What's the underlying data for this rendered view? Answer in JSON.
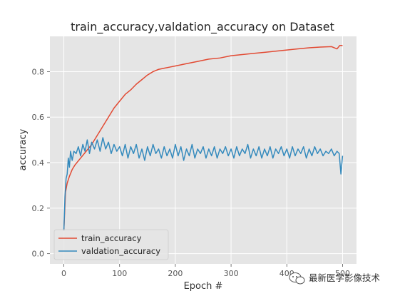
{
  "chart_data": {
    "type": "line",
    "title": "train_accuracy,valdation_accuracy on Dataset",
    "xlabel": "Epoch #",
    "ylabel": "accuracy",
    "xlim": [
      -25,
      525
    ],
    "ylim": [
      -0.045,
      0.955
    ],
    "xticks": [
      0,
      100,
      200,
      300,
      400,
      500
    ],
    "yticks": [
      0.0,
      0.2,
      0.4,
      0.6,
      0.8
    ],
    "ytick_labels": [
      "0.0",
      "0.2",
      "0.4",
      "0.6",
      "0.8"
    ],
    "grid": true,
    "legend_position": "lower-left",
    "series": [
      {
        "name": "train_accuracy",
        "color": "#E24A33",
        "points": [
          [
            0,
            0.1
          ],
          [
            3,
            0.27
          ],
          [
            6,
            0.31
          ],
          [
            10,
            0.34
          ],
          [
            15,
            0.37
          ],
          [
            20,
            0.39
          ],
          [
            30,
            0.42
          ],
          [
            40,
            0.45
          ],
          [
            50,
            0.48
          ],
          [
            60,
            0.52
          ],
          [
            70,
            0.56
          ],
          [
            80,
            0.6
          ],
          [
            90,
            0.64
          ],
          [
            100,
            0.67
          ],
          [
            110,
            0.7
          ],
          [
            120,
            0.72
          ],
          [
            130,
            0.745
          ],
          [
            140,
            0.765
          ],
          [
            150,
            0.785
          ],
          [
            160,
            0.8
          ],
          [
            170,
            0.81
          ],
          [
            180,
            0.815
          ],
          [
            190,
            0.82
          ],
          [
            200,
            0.825
          ],
          [
            220,
            0.835
          ],
          [
            240,
            0.845
          ],
          [
            260,
            0.855
          ],
          [
            280,
            0.86
          ],
          [
            300,
            0.87
          ],
          [
            320,
            0.875
          ],
          [
            340,
            0.88
          ],
          [
            360,
            0.885
          ],
          [
            380,
            0.89
          ],
          [
            400,
            0.895
          ],
          [
            420,
            0.9
          ],
          [
            440,
            0.905
          ],
          [
            460,
            0.908
          ],
          [
            480,
            0.91
          ],
          [
            490,
            0.9
          ],
          [
            495,
            0.915
          ],
          [
            500,
            0.915
          ]
        ]
      },
      {
        "name": "valdation_accuracy",
        "color": "#348ABD",
        "points": [
          [
            0,
            0.1
          ],
          [
            2,
            0.25
          ],
          [
            4,
            0.33
          ],
          [
            6,
            0.35
          ],
          [
            8,
            0.42
          ],
          [
            10,
            0.38
          ],
          [
            12,
            0.45
          ],
          [
            15,
            0.41
          ],
          [
            18,
            0.45
          ],
          [
            22,
            0.44
          ],
          [
            26,
            0.47
          ],
          [
            30,
            0.43
          ],
          [
            34,
            0.48
          ],
          [
            38,
            0.45
          ],
          [
            42,
            0.5
          ],
          [
            46,
            0.44
          ],
          [
            50,
            0.49
          ],
          [
            55,
            0.46
          ],
          [
            60,
            0.5
          ],
          [
            65,
            0.45
          ],
          [
            70,
            0.51
          ],
          [
            75,
            0.46
          ],
          [
            80,
            0.49
          ],
          [
            85,
            0.44
          ],
          [
            90,
            0.48
          ],
          [
            95,
            0.45
          ],
          [
            100,
            0.47
          ],
          [
            105,
            0.43
          ],
          [
            110,
            0.48
          ],
          [
            115,
            0.42
          ],
          [
            120,
            0.47
          ],
          [
            125,
            0.44
          ],
          [
            130,
            0.48
          ],
          [
            135,
            0.42
          ],
          [
            140,
            0.46
          ],
          [
            145,
            0.41
          ],
          [
            150,
            0.47
          ],
          [
            155,
            0.43
          ],
          [
            160,
            0.48
          ],
          [
            165,
            0.44
          ],
          [
            170,
            0.46
          ],
          [
            175,
            0.42
          ],
          [
            180,
            0.47
          ],
          [
            185,
            0.43
          ],
          [
            190,
            0.46
          ],
          [
            195,
            0.42
          ],
          [
            200,
            0.48
          ],
          [
            205,
            0.43
          ],
          [
            210,
            0.47
          ],
          [
            215,
            0.41
          ],
          [
            220,
            0.46
          ],
          [
            225,
            0.43
          ],
          [
            230,
            0.48
          ],
          [
            235,
            0.42
          ],
          [
            240,
            0.46
          ],
          [
            245,
            0.44
          ],
          [
            250,
            0.47
          ],
          [
            255,
            0.42
          ],
          [
            260,
            0.46
          ],
          [
            265,
            0.43
          ],
          [
            270,
            0.47
          ],
          [
            275,
            0.42
          ],
          [
            280,
            0.46
          ],
          [
            285,
            0.44
          ],
          [
            290,
            0.47
          ],
          [
            295,
            0.43
          ],
          [
            300,
            0.46
          ],
          [
            305,
            0.42
          ],
          [
            310,
            0.47
          ],
          [
            315,
            0.43
          ],
          [
            320,
            0.46
          ],
          [
            325,
            0.44
          ],
          [
            330,
            0.48
          ],
          [
            335,
            0.42
          ],
          [
            340,
            0.46
          ],
          [
            345,
            0.43
          ],
          [
            350,
            0.47
          ],
          [
            355,
            0.42
          ],
          [
            360,
            0.46
          ],
          [
            365,
            0.43
          ],
          [
            370,
            0.47
          ],
          [
            375,
            0.42
          ],
          [
            380,
            0.46
          ],
          [
            385,
            0.44
          ],
          [
            390,
            0.47
          ],
          [
            395,
            0.43
          ],
          [
            400,
            0.46
          ],
          [
            405,
            0.42
          ],
          [
            410,
            0.47
          ],
          [
            415,
            0.43
          ],
          [
            420,
            0.46
          ],
          [
            425,
            0.44
          ],
          [
            430,
            0.47
          ],
          [
            435,
            0.42
          ],
          [
            440,
            0.46
          ],
          [
            445,
            0.43
          ],
          [
            450,
            0.47
          ],
          [
            455,
            0.44
          ],
          [
            460,
            0.46
          ],
          [
            465,
            0.43
          ],
          [
            470,
            0.45
          ],
          [
            475,
            0.44
          ],
          [
            480,
            0.46
          ],
          [
            485,
            0.43
          ],
          [
            490,
            0.45
          ],
          [
            494,
            0.44
          ],
          [
            497,
            0.35
          ],
          [
            500,
            0.43
          ]
        ]
      }
    ]
  },
  "watermark": {
    "text": "最新医学影像技术",
    "icon": "wechat-icon"
  },
  "colors": {
    "plot_background": "#E5E5E5",
    "grid": "#FFFFFF",
    "page_background": "#FFFFFF"
  }
}
